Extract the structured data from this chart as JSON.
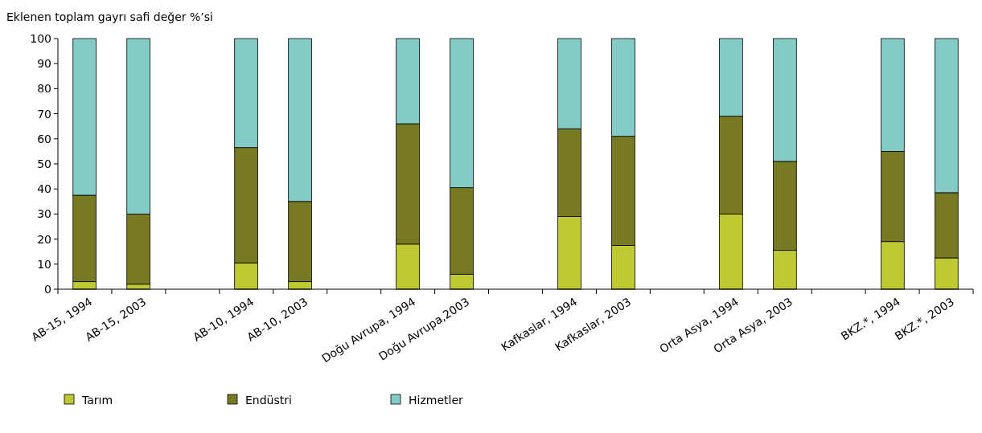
{
  "chart_data": {
    "type": "bar",
    "stacked": true,
    "ylabel": "Eklenen toplam gayrı safi değer %’si",
    "categories": [
      "AB-15, 1994",
      "AB-15, 2003",
      null,
      "AB-10, 1994",
      "AB-10, 2003",
      null,
      "Doğu Avrupa, 1994",
      "Doğu Avrupa,2003",
      null,
      "Kafkaslar, 1994",
      "Kafkaslar, 2003",
      null,
      "Orta Asya, 1994",
      "Orta Asya, 2003",
      null,
      "BKZ.*, 1994",
      "BKZ.*, 2003"
    ],
    "series": [
      {
        "name": "Tarım",
        "color": "#bfc934",
        "values": [
          3,
          2,
          null,
          10.5,
          3,
          null,
          18,
          6,
          null,
          29,
          17.5,
          null,
          30,
          15.5,
          null,
          19,
          12.5
        ]
      },
      {
        "name": "Endüstri",
        "color": "#777a22",
        "values": [
          34.5,
          28,
          null,
          46,
          32,
          null,
          48,
          34.5,
          null,
          35,
          43.5,
          null,
          39,
          35.5,
          null,
          36,
          26
        ]
      },
      {
        "name": "Hizmetler",
        "color": "#84cbc8",
        "values": [
          62.5,
          70,
          null,
          43.5,
          65,
          null,
          34,
          59.5,
          null,
          36,
          39,
          null,
          31,
          49,
          null,
          45,
          61.5
        ]
      }
    ],
    "ylim": [
      0,
      100
    ],
    "yticks": [
      0,
      10,
      20,
      30,
      40,
      50,
      60,
      70,
      80,
      90,
      100
    ],
    "grid": false,
    "legend": "bottom left"
  }
}
